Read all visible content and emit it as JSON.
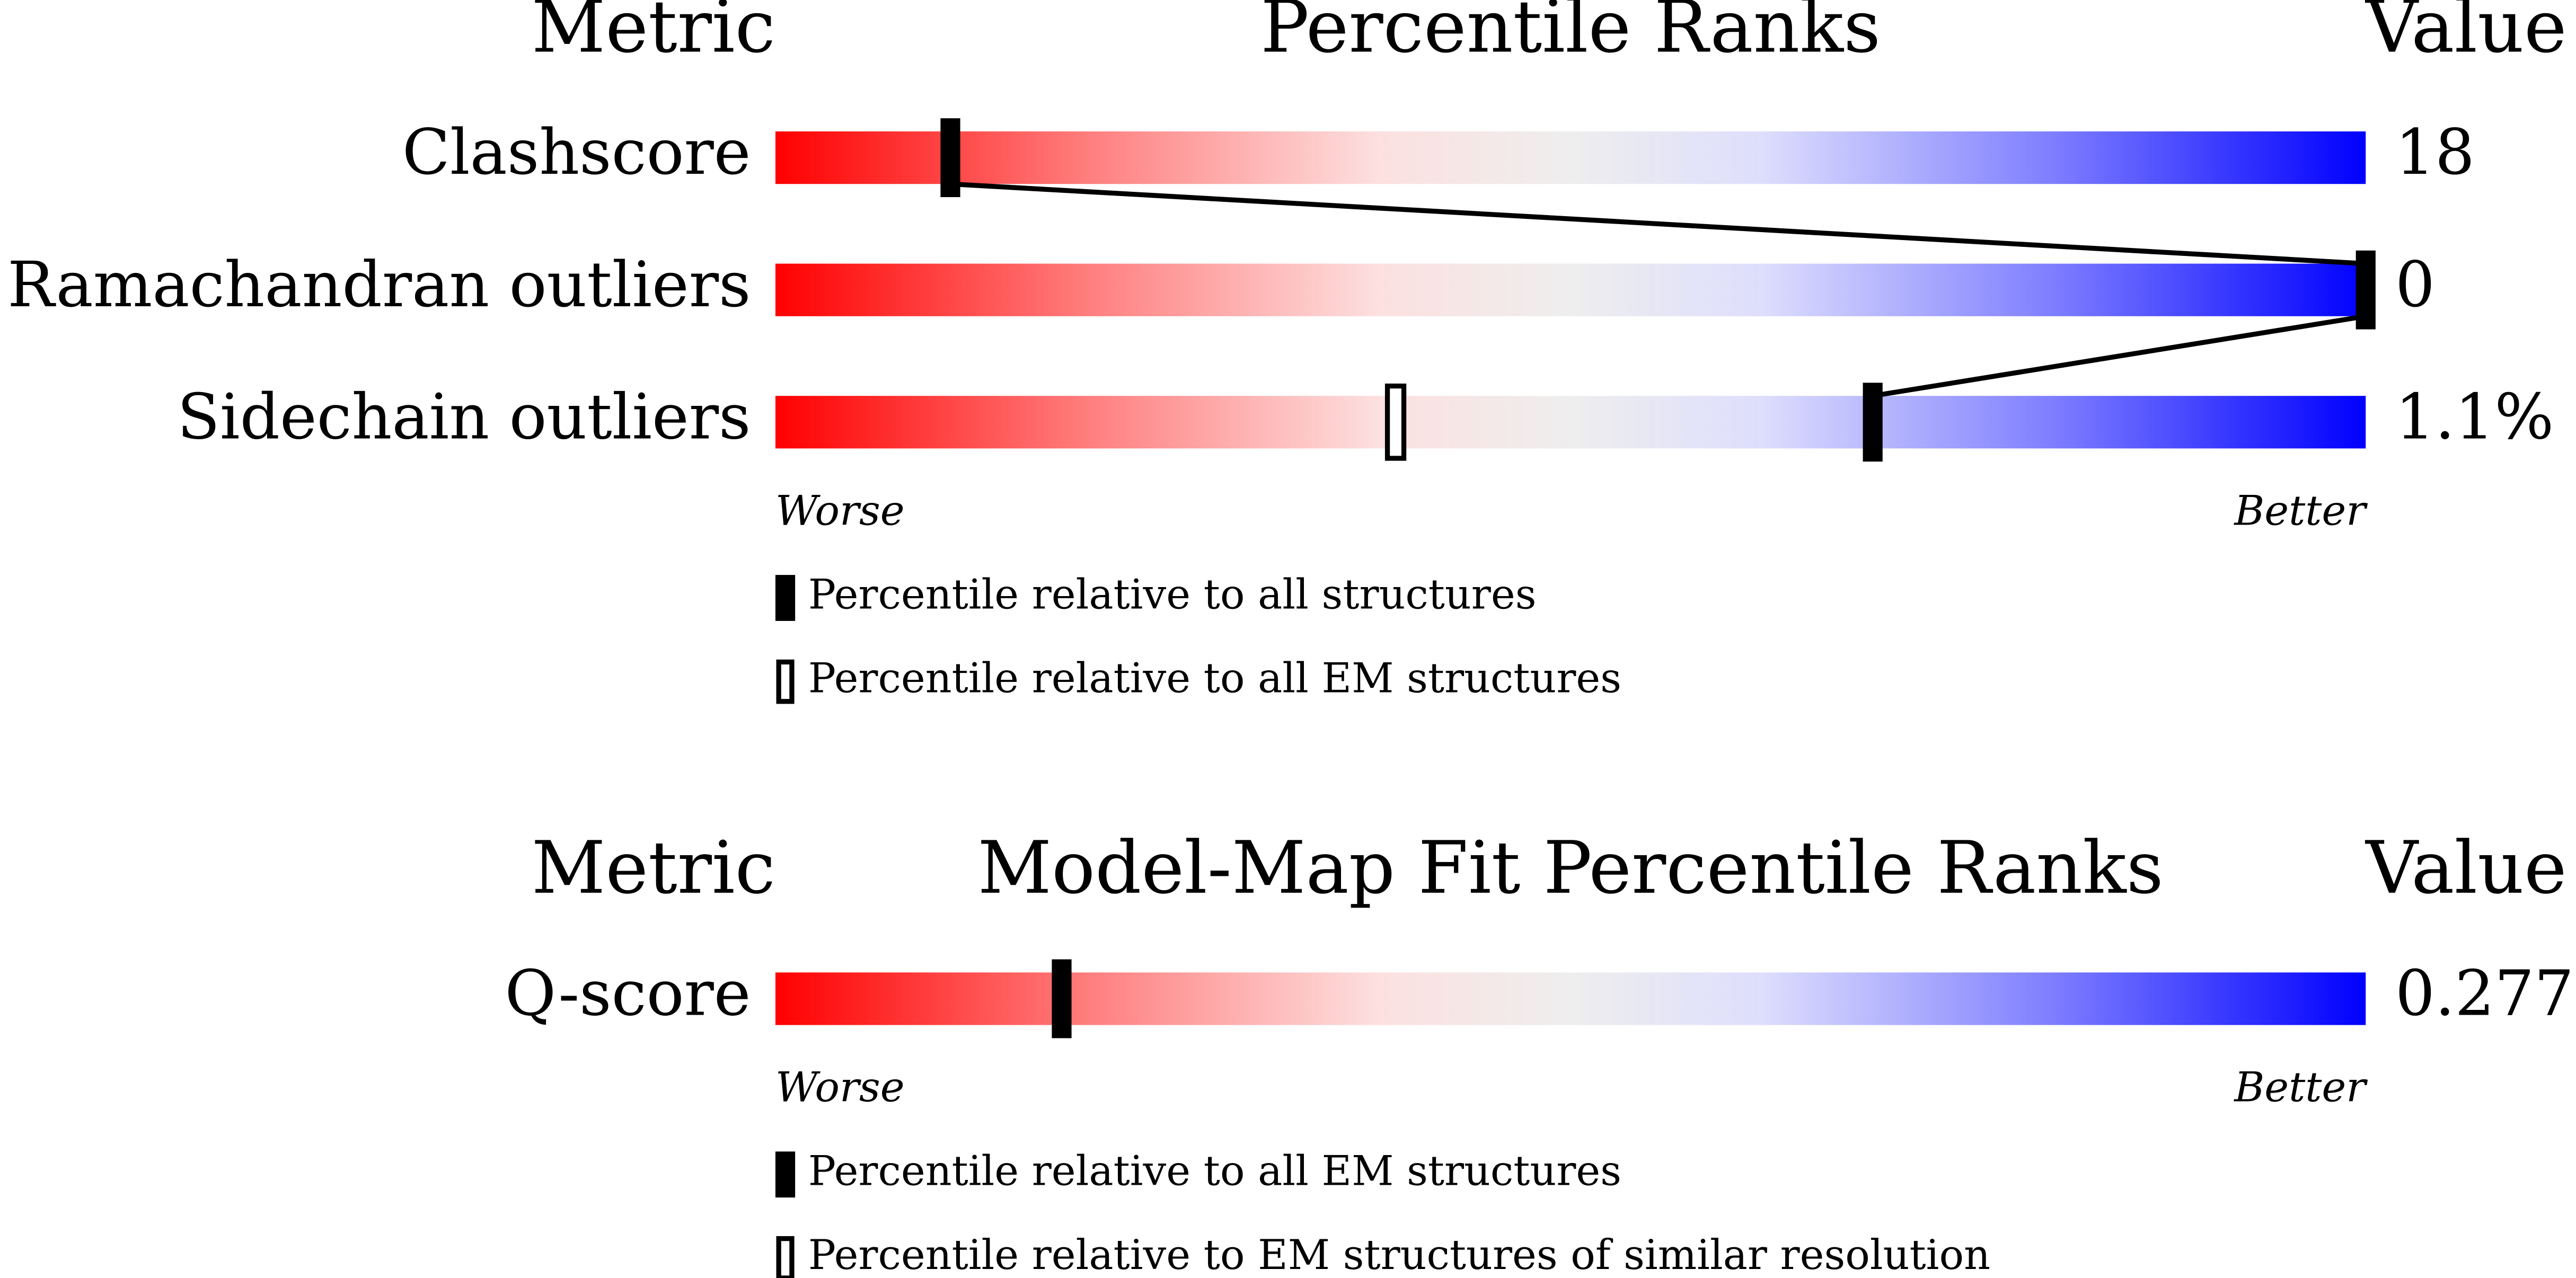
{
  "chart_data": [
    {
      "type": "percentile",
      "title": "Percentile Ranks",
      "metric_header": "Metric",
      "value_header": "Value",
      "categories": [
        "Clashscore",
        "Ramachandran outliers",
        "Sidechain outliers"
      ],
      "values": [
        18,
        0,
        1.1
      ],
      "value_labels": [
        "18",
        "0",
        "1.1%"
      ],
      "xlim": [
        0,
        100
      ],
      "worse_label": "Worse",
      "better_label": "Better",
      "series": [
        {
          "name": "Percentile relative to all structures",
          "marker": "filled",
          "values": [
            11,
            100,
            69
          ]
        },
        {
          "name": "Percentile relative to all EM structures",
          "marker": "open",
          "values": [
            null,
            null,
            39
          ]
        }
      ],
      "connect_series": 0
    },
    {
      "type": "percentile",
      "title": "Model-Map Fit Percentile Ranks",
      "metric_header": "Metric",
      "value_header": "Value",
      "categories": [
        "Q-score"
      ],
      "values": [
        0.277
      ],
      "xlim": [
        0,
        100
      ],
      "worse_label": "Worse",
      "better_label": "Better",
      "series": [
        {
          "name": "Percentile relative to all EM structures",
          "marker": "filled",
          "values": [
            18
          ]
        },
        {
          "name": "Percentile relative to EM structures of similar resolution",
          "marker": "open",
          "values": [
            null
          ]
        }
      ]
    }
  ]
}
